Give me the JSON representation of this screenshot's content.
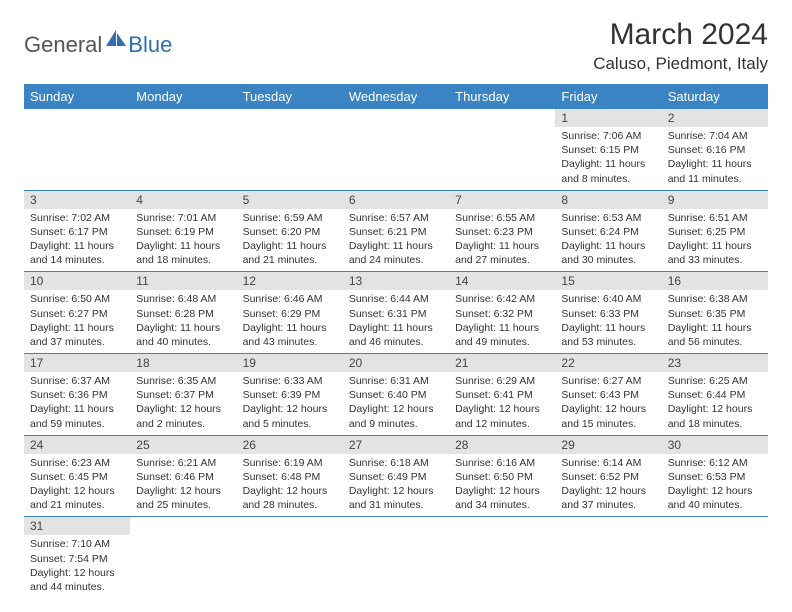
{
  "logo": {
    "general": "General",
    "blue": "Blue"
  },
  "title": "March 2024",
  "location": "Caluso, Piedmont, Italy",
  "colors": {
    "header_bg": "#3b84c4",
    "header_text": "#ffffff",
    "daynum_bg": "#e3e3e3",
    "row_border": "#3b84c4",
    "page_bg": "#ffffff",
    "body_text": "#333333",
    "logo_blue": "#2f6fb0",
    "logo_gray": "#555555"
  },
  "weekdays": [
    "Sunday",
    "Monday",
    "Tuesday",
    "Wednesday",
    "Thursday",
    "Friday",
    "Saturday"
  ],
  "weeks": [
    [
      null,
      null,
      null,
      null,
      null,
      {
        "n": "1",
        "sunrise": "Sunrise: 7:06 AM",
        "sunset": "Sunset: 6:15 PM",
        "daylight": "Daylight: 11 hours and 8 minutes."
      },
      {
        "n": "2",
        "sunrise": "Sunrise: 7:04 AM",
        "sunset": "Sunset: 6:16 PM",
        "daylight": "Daylight: 11 hours and 11 minutes."
      }
    ],
    [
      {
        "n": "3",
        "sunrise": "Sunrise: 7:02 AM",
        "sunset": "Sunset: 6:17 PM",
        "daylight": "Daylight: 11 hours and 14 minutes."
      },
      {
        "n": "4",
        "sunrise": "Sunrise: 7:01 AM",
        "sunset": "Sunset: 6:19 PM",
        "daylight": "Daylight: 11 hours and 18 minutes."
      },
      {
        "n": "5",
        "sunrise": "Sunrise: 6:59 AM",
        "sunset": "Sunset: 6:20 PM",
        "daylight": "Daylight: 11 hours and 21 minutes."
      },
      {
        "n": "6",
        "sunrise": "Sunrise: 6:57 AM",
        "sunset": "Sunset: 6:21 PM",
        "daylight": "Daylight: 11 hours and 24 minutes."
      },
      {
        "n": "7",
        "sunrise": "Sunrise: 6:55 AM",
        "sunset": "Sunset: 6:23 PM",
        "daylight": "Daylight: 11 hours and 27 minutes."
      },
      {
        "n": "8",
        "sunrise": "Sunrise: 6:53 AM",
        "sunset": "Sunset: 6:24 PM",
        "daylight": "Daylight: 11 hours and 30 minutes."
      },
      {
        "n": "9",
        "sunrise": "Sunrise: 6:51 AM",
        "sunset": "Sunset: 6:25 PM",
        "daylight": "Daylight: 11 hours and 33 minutes."
      }
    ],
    [
      {
        "n": "10",
        "sunrise": "Sunrise: 6:50 AM",
        "sunset": "Sunset: 6:27 PM",
        "daylight": "Daylight: 11 hours and 37 minutes."
      },
      {
        "n": "11",
        "sunrise": "Sunrise: 6:48 AM",
        "sunset": "Sunset: 6:28 PM",
        "daylight": "Daylight: 11 hours and 40 minutes."
      },
      {
        "n": "12",
        "sunrise": "Sunrise: 6:46 AM",
        "sunset": "Sunset: 6:29 PM",
        "daylight": "Daylight: 11 hours and 43 minutes."
      },
      {
        "n": "13",
        "sunrise": "Sunrise: 6:44 AM",
        "sunset": "Sunset: 6:31 PM",
        "daylight": "Daylight: 11 hours and 46 minutes."
      },
      {
        "n": "14",
        "sunrise": "Sunrise: 6:42 AM",
        "sunset": "Sunset: 6:32 PM",
        "daylight": "Daylight: 11 hours and 49 minutes."
      },
      {
        "n": "15",
        "sunrise": "Sunrise: 6:40 AM",
        "sunset": "Sunset: 6:33 PM",
        "daylight": "Daylight: 11 hours and 53 minutes."
      },
      {
        "n": "16",
        "sunrise": "Sunrise: 6:38 AM",
        "sunset": "Sunset: 6:35 PM",
        "daylight": "Daylight: 11 hours and 56 minutes."
      }
    ],
    [
      {
        "n": "17",
        "sunrise": "Sunrise: 6:37 AM",
        "sunset": "Sunset: 6:36 PM",
        "daylight": "Daylight: 11 hours and 59 minutes."
      },
      {
        "n": "18",
        "sunrise": "Sunrise: 6:35 AM",
        "sunset": "Sunset: 6:37 PM",
        "daylight": "Daylight: 12 hours and 2 minutes."
      },
      {
        "n": "19",
        "sunrise": "Sunrise: 6:33 AM",
        "sunset": "Sunset: 6:39 PM",
        "daylight": "Daylight: 12 hours and 5 minutes."
      },
      {
        "n": "20",
        "sunrise": "Sunrise: 6:31 AM",
        "sunset": "Sunset: 6:40 PM",
        "daylight": "Daylight: 12 hours and 9 minutes."
      },
      {
        "n": "21",
        "sunrise": "Sunrise: 6:29 AM",
        "sunset": "Sunset: 6:41 PM",
        "daylight": "Daylight: 12 hours and 12 minutes."
      },
      {
        "n": "22",
        "sunrise": "Sunrise: 6:27 AM",
        "sunset": "Sunset: 6:43 PM",
        "daylight": "Daylight: 12 hours and 15 minutes."
      },
      {
        "n": "23",
        "sunrise": "Sunrise: 6:25 AM",
        "sunset": "Sunset: 6:44 PM",
        "daylight": "Daylight: 12 hours and 18 minutes."
      }
    ],
    [
      {
        "n": "24",
        "sunrise": "Sunrise: 6:23 AM",
        "sunset": "Sunset: 6:45 PM",
        "daylight": "Daylight: 12 hours and 21 minutes."
      },
      {
        "n": "25",
        "sunrise": "Sunrise: 6:21 AM",
        "sunset": "Sunset: 6:46 PM",
        "daylight": "Daylight: 12 hours and 25 minutes."
      },
      {
        "n": "26",
        "sunrise": "Sunrise: 6:19 AM",
        "sunset": "Sunset: 6:48 PM",
        "daylight": "Daylight: 12 hours and 28 minutes."
      },
      {
        "n": "27",
        "sunrise": "Sunrise: 6:18 AM",
        "sunset": "Sunset: 6:49 PM",
        "daylight": "Daylight: 12 hours and 31 minutes."
      },
      {
        "n": "28",
        "sunrise": "Sunrise: 6:16 AM",
        "sunset": "Sunset: 6:50 PM",
        "daylight": "Daylight: 12 hours and 34 minutes."
      },
      {
        "n": "29",
        "sunrise": "Sunrise: 6:14 AM",
        "sunset": "Sunset: 6:52 PM",
        "daylight": "Daylight: 12 hours and 37 minutes."
      },
      {
        "n": "30",
        "sunrise": "Sunrise: 6:12 AM",
        "sunset": "Sunset: 6:53 PM",
        "daylight": "Daylight: 12 hours and 40 minutes."
      }
    ],
    [
      {
        "n": "31",
        "sunrise": "Sunrise: 7:10 AM",
        "sunset": "Sunset: 7:54 PM",
        "daylight": "Daylight: 12 hours and 44 minutes."
      },
      null,
      null,
      null,
      null,
      null,
      null
    ]
  ]
}
